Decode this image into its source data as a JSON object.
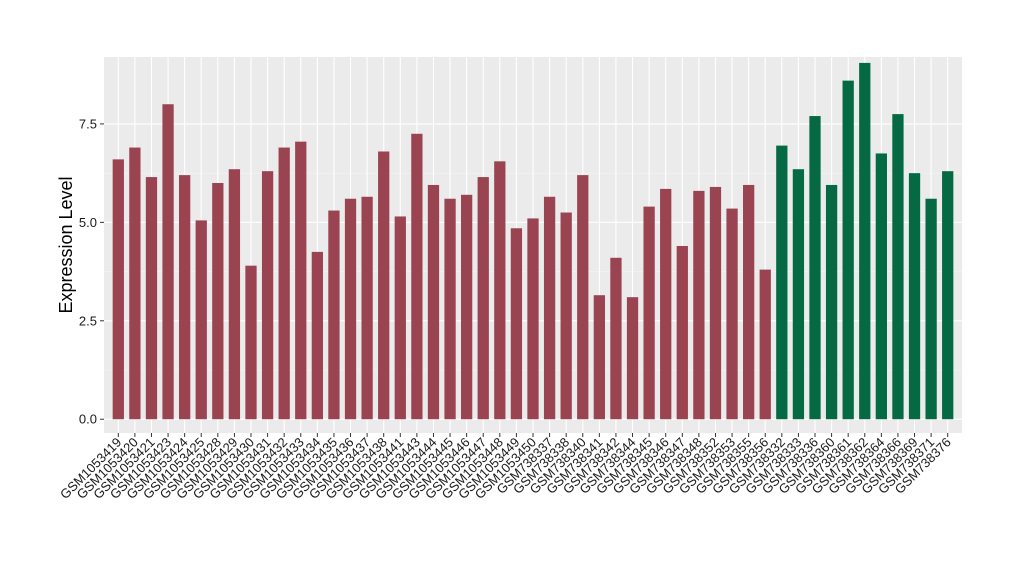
{
  "chart_data": {
    "type": "bar",
    "title": "",
    "xlabel": "",
    "ylabel": "Expression Level",
    "ylim": [
      -0.35,
      9.2
    ],
    "yticks": [
      0.0,
      2.5,
      5.0,
      7.5
    ],
    "ytick_labels": [
      "0.0",
      "2.5",
      "5.0",
      "7.5"
    ],
    "grid": true,
    "legend": "none",
    "background": "#ebebeb",
    "colors": {
      "group1": "#9a4451",
      "group2": "#056a43"
    },
    "categories": [
      "GSM1053419",
      "GSM1053420",
      "GSM1053421",
      "GSM1053423",
      "GSM1053424",
      "GSM1053425",
      "GSM1053428",
      "GSM1053429",
      "GSM1053430",
      "GSM1053431",
      "GSM1053432",
      "GSM1053433",
      "GSM1053434",
      "GSM1053435",
      "GSM1053436",
      "GSM1053437",
      "GSM1053438",
      "GSM1053441",
      "GSM1053443",
      "GSM1053444",
      "GSM1053445",
      "GSM1053446",
      "GSM1053447",
      "GSM1053448",
      "GSM1053449",
      "GSM1053450",
      "GSM738337",
      "GSM738338",
      "GSM738340",
      "GSM738341",
      "GSM738342",
      "GSM738344",
      "GSM738345",
      "GSM738346",
      "GSM738347",
      "GSM738348",
      "GSM738352",
      "GSM738353",
      "GSM738355",
      "GSM738356",
      "GSM738332",
      "GSM738333",
      "GSM738336",
      "GSM738360",
      "GSM738361",
      "GSM738362",
      "GSM738364",
      "GSM738366",
      "GSM738369",
      "GSM738371",
      "GSM738376"
    ],
    "values": [
      6.6,
      6.9,
      6.15,
      8.0,
      6.2,
      5.05,
      6.0,
      6.35,
      3.9,
      6.3,
      6.9,
      7.05,
      4.25,
      5.3,
      5.6,
      5.65,
      6.8,
      5.15,
      7.25,
      5.95,
      5.6,
      5.7,
      6.15,
      6.55,
      4.85,
      5.1,
      5.65,
      5.25,
      6.2,
      3.15,
      4.1,
      3.1,
      5.4,
      5.85,
      4.4,
      5.8,
      5.9,
      5.35,
      5.95,
      3.8,
      6.95,
      6.35,
      7.7,
      5.95,
      8.6,
      9.05,
      6.75,
      7.75,
      6.25,
      5.6,
      6.3
    ],
    "groups": [
      "group1",
      "group1",
      "group1",
      "group1",
      "group1",
      "group1",
      "group1",
      "group1",
      "group1",
      "group1",
      "group1",
      "group1",
      "group1",
      "group1",
      "group1",
      "group1",
      "group1",
      "group1",
      "group1",
      "group1",
      "group1",
      "group1",
      "group1",
      "group1",
      "group1",
      "group1",
      "group1",
      "group1",
      "group1",
      "group1",
      "group1",
      "group1",
      "group1",
      "group1",
      "group1",
      "group1",
      "group1",
      "group1",
      "group1",
      "group1",
      "group2",
      "group2",
      "group2",
      "group2",
      "group2",
      "group2",
      "group2",
      "group2",
      "group2",
      "group2",
      "group2"
    ]
  }
}
